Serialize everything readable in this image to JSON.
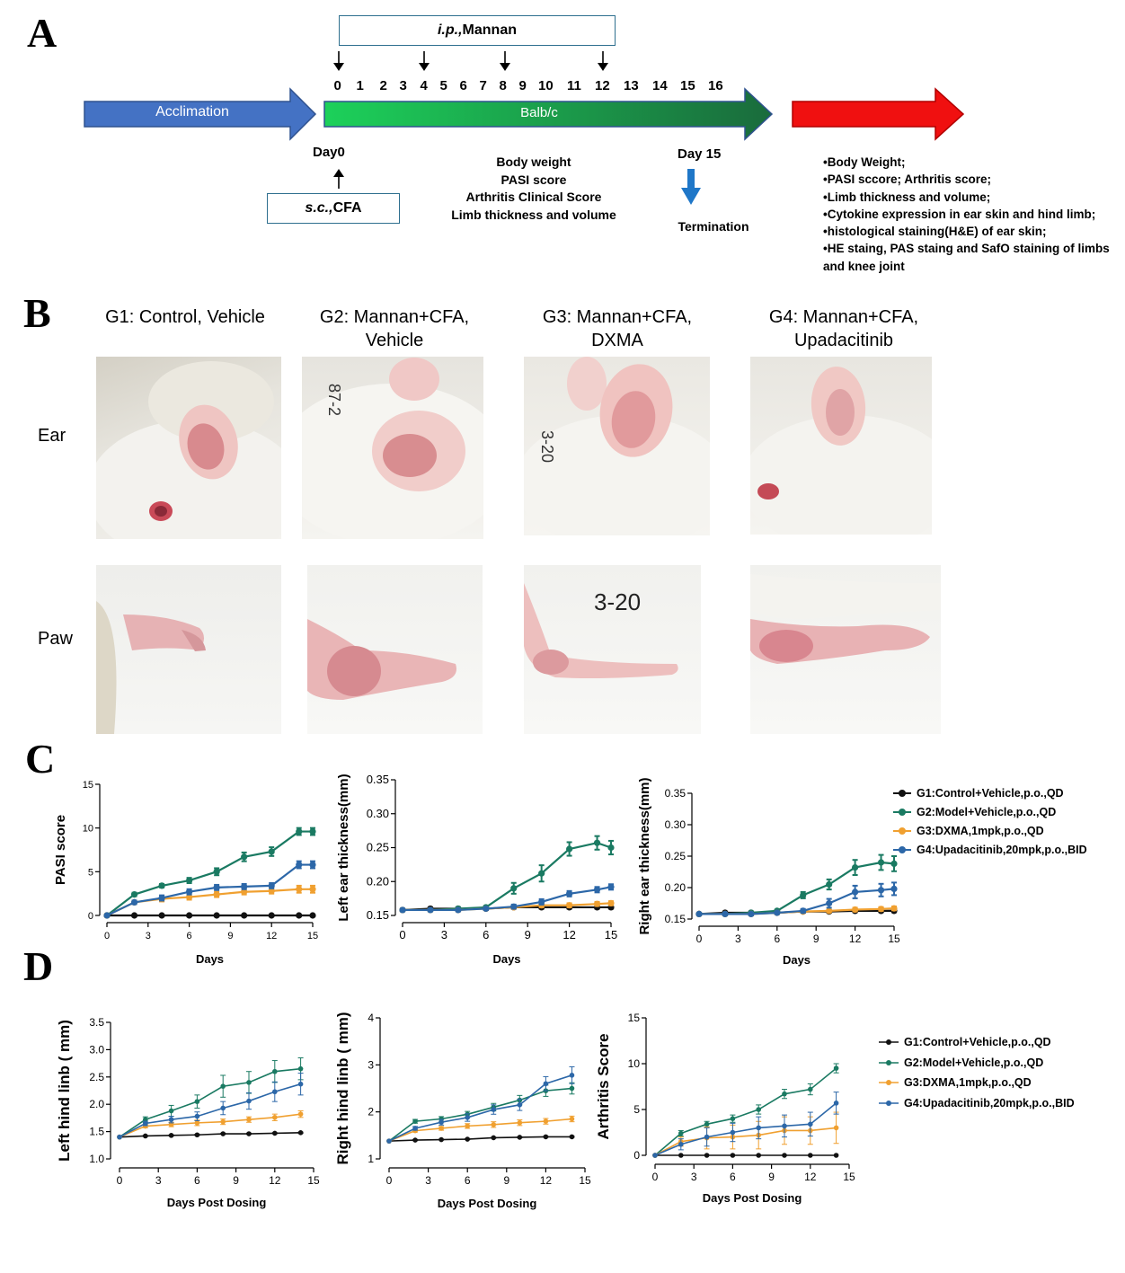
{
  "panel_labels": {
    "a": "A",
    "b": "B",
    "c": "C",
    "d": "D"
  },
  "timeline": {
    "ip_prefix": "i.p.,",
    "ip_agent": " Mannan",
    "sc_prefix": "s.c.,",
    "sc_agent": " CFA",
    "days": [
      "0",
      "1",
      "2",
      "3",
      "4",
      "5",
      "6",
      "7",
      "8",
      "9",
      "10",
      "11",
      "12",
      "13",
      "14",
      "15",
      "16"
    ],
    "injection_days": [
      "0",
      "4",
      "8",
      "12"
    ],
    "acclimation": "Acclimation",
    "strain": "Balb/c",
    "day0": "Day0",
    "day15": "Day 15",
    "measures": [
      "Body weight",
      "PASI score",
      "Arthritis Clinical Score",
      "Limb thickness and volume"
    ],
    "termination": "Termination",
    "endpoints": [
      "•Body Weight;",
      "•PASI sccore; Arthritis score;",
      "•Limb thickness and volume;",
      "•Cytokine expression in ear skin and hind limb;",
      "•histological staining(H&E) of ear skin;",
      "•HE staing, PAS staing and SafO staining of limbs",
      "and knee joint"
    ],
    "colors": {
      "acclimation": "#4472c4",
      "balbc_start": "#1cd15a",
      "balbc_end": "#1a6b3c",
      "endpoint": "#f01010",
      "termination_arrow": "#1f77c8"
    }
  },
  "photos": {
    "groups": [
      "G1: Control, Vehicle",
      "G2: Mannan+CFA,\nVehicle",
      "G3: Mannan+CFA,\nDXMA",
      "G4: Mannan+CFA,\nUpadacitinib"
    ],
    "rows": [
      "Ear",
      "Paw"
    ],
    "handwritten": {
      "g2_ear": "87-2",
      "g3_ear": "3-20",
      "g3_paw": "3-20"
    }
  },
  "legend": {
    "series": [
      {
        "name": "G1:Control+Vehicle,p.o.,QD",
        "color": "#111111"
      },
      {
        "name": "G2:Model+Vehicle,p.o.,QD",
        "color": "#1a7a62"
      },
      {
        "name": "G3:DXMA,1mpk,p.o.,QD",
        "color": "#f0a030"
      },
      {
        "name": "G4:Upadacitinib,20mpk,p.o.,BID",
        "color": "#2c67a8"
      }
    ]
  },
  "chart_data": [
    {
      "id": "pasi",
      "type": "line",
      "panel": "C",
      "xlabel": "Days",
      "ylabel": "PASI score",
      "xlim": [
        0,
        15
      ],
      "xticks": [
        0,
        3,
        6,
        9,
        12,
        15
      ],
      "ylim": [
        0,
        15
      ],
      "yticks": [
        0,
        5,
        10,
        15
      ],
      "x": [
        0,
        2,
        4,
        6,
        8,
        10,
        12,
        14,
        15
      ],
      "series": [
        {
          "name": "G1:Control+Vehicle,p.o.,QD",
          "values": [
            0,
            0,
            0,
            0,
            0,
            0,
            0,
            0,
            0
          ],
          "err": [
            0,
            0,
            0,
            0,
            0,
            0,
            0,
            0,
            0
          ]
        },
        {
          "name": "G2:Model+Vehicle,p.o.,QD",
          "values": [
            0,
            2.4,
            3.4,
            4,
            5,
            6.7,
            7.3,
            9.6,
            9.6
          ],
          "err": [
            0,
            0.2,
            0.2,
            0.3,
            0.4,
            0.5,
            0.5,
            0.4,
            0.4
          ]
        },
        {
          "name": "G3:DXMA,1mpk,p.o.,QD",
          "values": [
            0,
            1.5,
            1.9,
            2.1,
            2.4,
            2.7,
            2.8,
            3,
            3
          ],
          "err": [
            0,
            0.2,
            0.3,
            0.3,
            0.3,
            0.3,
            0.3,
            0.4,
            0.4
          ]
        },
        {
          "name": "G4:Upadacitinib,20mpk,p.o.,BID",
          "values": [
            0,
            1.5,
            2,
            2.7,
            3.2,
            3.3,
            3.4,
            5.8,
            5.8
          ],
          "err": [
            0,
            0.2,
            0.3,
            0.3,
            0.3,
            0.3,
            0.3,
            0.4,
            0.4
          ]
        }
      ]
    },
    {
      "id": "left_ear",
      "type": "line",
      "panel": "C",
      "xlabel": "Days",
      "ylabel": "Left ear thickness(mm)",
      "xlim": [
        0,
        15
      ],
      "xticks": [
        0,
        3,
        6,
        9,
        12,
        15
      ],
      "ylim": [
        0.15,
        0.35
      ],
      "yticks": [
        0.15,
        0.2,
        0.25,
        0.3,
        0.35
      ],
      "x": [
        0,
        2,
        4,
        6,
        8,
        10,
        12,
        14,
        15
      ],
      "series": [
        {
          "name": "G1:Control+Vehicle,p.o.,QD",
          "values": [
            0.158,
            0.16,
            0.16,
            0.16,
            0.162,
            0.162,
            0.162,
            0.162,
            0.162
          ],
          "err": [
            0.002,
            0.002,
            0.002,
            0.002,
            0.002,
            0.002,
            0.002,
            0.002,
            0.002
          ]
        },
        {
          "name": "G2:Model+Vehicle,p.o.,QD",
          "values": [
            0.158,
            0.158,
            0.16,
            0.162,
            0.19,
            0.212,
            0.248,
            0.257,
            0.25
          ],
          "err": [
            0.002,
            0.002,
            0.002,
            0.002,
            0.008,
            0.012,
            0.01,
            0.01,
            0.01
          ]
        },
        {
          "name": "G3:DXMA,1mpk,p.o.,QD",
          "values": [
            0.158,
            0.158,
            0.158,
            0.16,
            0.162,
            0.165,
            0.165,
            0.167,
            0.168
          ],
          "err": [
            0.002,
            0.002,
            0.002,
            0.002,
            0.002,
            0.003,
            0.003,
            0.003,
            0.003
          ]
        },
        {
          "name": "G4:Upadacitinib,20mpk,p.o.,BID",
          "values": [
            0.158,
            0.158,
            0.158,
            0.16,
            0.163,
            0.17,
            0.182,
            0.188,
            0.192
          ],
          "err": [
            0.002,
            0.002,
            0.002,
            0.002,
            0.003,
            0.004,
            0.004,
            0.004,
            0.004
          ]
        }
      ]
    },
    {
      "id": "right_ear",
      "type": "line",
      "panel": "C",
      "xlabel": "Days",
      "ylabel": "Right ear thickness(mm)",
      "xlim": [
        0,
        15
      ],
      "xticks": [
        0,
        3,
        6,
        9,
        12,
        15
      ],
      "ylim": [
        0.15,
        0.35
      ],
      "yticks": [
        0.15,
        0.2,
        0.25,
        0.3,
        0.35
      ],
      "x": [
        0,
        2,
        4,
        6,
        8,
        10,
        12,
        14,
        15
      ],
      "series": [
        {
          "name": "G1:Control+Vehicle,p.o.,QD",
          "values": [
            0.158,
            0.16,
            0.16,
            0.16,
            0.162,
            0.162,
            0.163,
            0.163,
            0.163
          ],
          "err": [
            0.002,
            0.002,
            0.002,
            0.002,
            0.002,
            0.002,
            0.002,
            0.002,
            0.002
          ]
        },
        {
          "name": "G2:Model+Vehicle,p.o.,QD",
          "values": [
            0.158,
            0.158,
            0.16,
            0.163,
            0.188,
            0.205,
            0.232,
            0.24,
            0.238
          ],
          "err": [
            0.002,
            0.002,
            0.002,
            0.002,
            0.005,
            0.008,
            0.012,
            0.012,
            0.012
          ]
        },
        {
          "name": "G3:DXMA,1mpk,p.o.,QD",
          "values": [
            0.158,
            0.158,
            0.158,
            0.16,
            0.162,
            0.163,
            0.165,
            0.166,
            0.167
          ],
          "err": [
            0.002,
            0.002,
            0.002,
            0.002,
            0.002,
            0.002,
            0.003,
            0.003,
            0.003
          ]
        },
        {
          "name": "G4:Upadacitinib,20mpk,p.o.,BID",
          "values": [
            0.158,
            0.158,
            0.158,
            0.16,
            0.163,
            0.175,
            0.193,
            0.196,
            0.198
          ],
          "err": [
            0.002,
            0.002,
            0.002,
            0.002,
            0.003,
            0.007,
            0.01,
            0.01,
            0.01
          ]
        }
      ]
    },
    {
      "id": "left_limb",
      "type": "line",
      "panel": "D",
      "xlabel": "Days Post Dosing",
      "ylabel": "Left hind linb ( mm)",
      "xlim": [
        0,
        15
      ],
      "xticks": [
        0,
        3,
        6,
        9,
        12,
        15
      ],
      "ylim": [
        1.0,
        3.5
      ],
      "yticks": [
        1.0,
        1.5,
        2.0,
        2.5,
        3.0,
        3.5
      ],
      "x": [
        0,
        2,
        4,
        6,
        8,
        10,
        12,
        14
      ],
      "series": [
        {
          "name": "G1:Control+Vehicle,p.o.,QD",
          "values": [
            1.4,
            1.42,
            1.43,
            1.44,
            1.46,
            1.46,
            1.47,
            1.48
          ],
          "err": [
            0,
            0.01,
            0.01,
            0.01,
            0.01,
            0.01,
            0.01,
            0.01
          ]
        },
        {
          "name": "G2:Model+Vehicle,p.o.,QD",
          "values": [
            1.4,
            1.72,
            1.88,
            2.05,
            2.33,
            2.4,
            2.6,
            2.65
          ],
          "err": [
            0,
            0.05,
            0.1,
            0.12,
            0.2,
            0.2,
            0.2,
            0.2
          ]
        },
        {
          "name": "G3:DXMA,1mpk,p.o.,QD",
          "values": [
            1.4,
            1.6,
            1.63,
            1.66,
            1.68,
            1.72,
            1.76,
            1.82
          ],
          "err": [
            0,
            0.03,
            0.04,
            0.05,
            0.05,
            0.05,
            0.06,
            0.06
          ]
        },
        {
          "name": "G4:Upadacitinib,20mpk,p.o.,BID",
          "values": [
            1.4,
            1.65,
            1.72,
            1.78,
            1.93,
            2.06,
            2.23,
            2.37
          ],
          "err": [
            0,
            0.04,
            0.06,
            0.08,
            0.12,
            0.15,
            0.18,
            0.2
          ]
        }
      ]
    },
    {
      "id": "right_limb",
      "type": "line",
      "panel": "D",
      "xlabel": "Days Post Dosing",
      "ylabel": "Right hind linb ( mm)",
      "xlim": [
        0,
        15
      ],
      "xticks": [
        0,
        3,
        6,
        9,
        12,
        15
      ],
      "ylim": [
        1,
        4
      ],
      "yticks": [
        1,
        2,
        3,
        4
      ],
      "x": [
        0,
        2,
        4,
        6,
        8,
        10,
        12,
        14
      ],
      "series": [
        {
          "name": "G1:Control+Vehicle,p.o.,QD",
          "values": [
            1.38,
            1.4,
            1.41,
            1.42,
            1.45,
            1.46,
            1.47,
            1.47
          ],
          "err": [
            0,
            0.01,
            0.01,
            0.01,
            0.01,
            0.01,
            0.01,
            0.01
          ]
        },
        {
          "name": "G2:Model+Vehicle,p.o.,QD",
          "values": [
            1.38,
            1.8,
            1.85,
            1.95,
            2.1,
            2.25,
            2.45,
            2.5
          ],
          "err": [
            0,
            0.04,
            0.05,
            0.06,
            0.08,
            0.1,
            0.12,
            0.12
          ]
        },
        {
          "name": "G3:DXMA,1mpk,p.o.,QD",
          "values": [
            1.38,
            1.6,
            1.65,
            1.7,
            1.73,
            1.77,
            1.8,
            1.85
          ],
          "err": [
            0,
            0.03,
            0.04,
            0.05,
            0.06,
            0.06,
            0.06,
            0.06
          ]
        },
        {
          "name": "G4:Upadacitinib,20mpk,p.o.,BID",
          "values": [
            1.38,
            1.65,
            1.78,
            1.88,
            2.05,
            2.15,
            2.6,
            2.78
          ],
          "err": [
            0,
            0.04,
            0.06,
            0.08,
            0.1,
            0.12,
            0.15,
            0.18
          ]
        }
      ]
    },
    {
      "id": "arthritis",
      "type": "line",
      "panel": "D",
      "xlabel": "Days Post Dosing",
      "ylabel": "Arthritis Score",
      "xlim": [
        0,
        15
      ],
      "xticks": [
        0,
        3,
        6,
        9,
        12,
        15
      ],
      "ylim": [
        0,
        15
      ],
      "yticks": [
        0,
        5,
        10,
        15
      ],
      "x": [
        0,
        2,
        4,
        6,
        8,
        10,
        12,
        14
      ],
      "series": [
        {
          "name": "G1:Control+Vehicle,p.o.,QD",
          "values": [
            0,
            0,
            0,
            0,
            0,
            0,
            0,
            0
          ],
          "err": [
            0,
            0,
            0,
            0,
            0,
            0,
            0,
            0
          ]
        },
        {
          "name": "G2:Model+Vehicle,p.o.,QD",
          "values": [
            0,
            2.4,
            3.4,
            4,
            5,
            6.7,
            7.2,
            9.5
          ],
          "err": [
            0,
            0.3,
            0.3,
            0.4,
            0.5,
            0.5,
            0.6,
            0.5
          ]
        },
        {
          "name": "G3:DXMA,1mpk,p.o.,QD",
          "values": [
            0,
            1.5,
            1.9,
            2,
            2.2,
            2.7,
            2.7,
            3
          ],
          "err": [
            0,
            0.5,
            1.2,
            1.3,
            1.5,
            1.5,
            1.5,
            1.7
          ]
        },
        {
          "name": "G4:Upadacitinib,20mpk,p.o.,BID",
          "values": [
            0,
            1.2,
            2,
            2.5,
            3,
            3.2,
            3.4,
            5.7
          ],
          "err": [
            0,
            0.6,
            1,
            1,
            1.2,
            1.2,
            1.3,
            1.2
          ]
        }
      ]
    }
  ]
}
